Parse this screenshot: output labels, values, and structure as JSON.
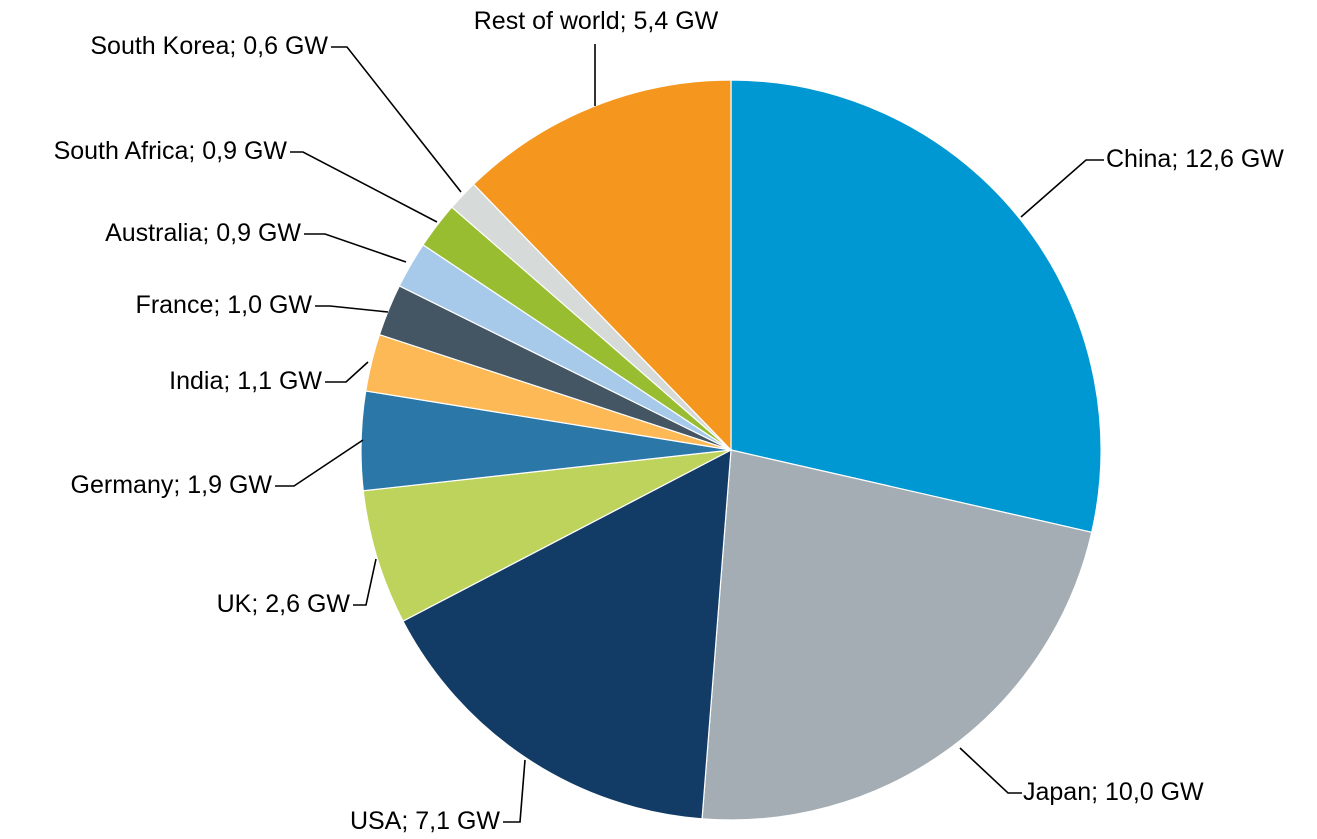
{
  "chart_data": {
    "type": "pie",
    "title": "",
    "unit": "GW",
    "slices": [
      {
        "name": "China",
        "value": 12.6,
        "label": "China; 12,6 GW",
        "color": "#0098d2"
      },
      {
        "name": "Japan",
        "value": 10.0,
        "label": "Japan; 10,0 GW",
        "color": "#a3adb3"
      },
      {
        "name": "USA",
        "value": 7.1,
        "label": "USA; 7,1 GW",
        "color": "#123c66"
      },
      {
        "name": "UK",
        "value": 2.6,
        "label": "UK; 2,6 GW",
        "color": "#bed35b"
      },
      {
        "name": "Germany",
        "value": 1.9,
        "label": "Germany; 1,9 GW",
        "color": "#2a77a8"
      },
      {
        "name": "India",
        "value": 1.1,
        "label": "India; 1,1 GW",
        "color": "#fcb955"
      },
      {
        "name": "France",
        "value": 1.0,
        "label": "France; 1,0 GW",
        "color": "#445563"
      },
      {
        "name": "Australia",
        "value": 0.9,
        "label": "Australia; 0,9 GW",
        "color": "#a7caeb"
      },
      {
        "name": "South Africa",
        "value": 0.9,
        "label": "South Africa; 0,9 GW",
        "color": "#98bd31"
      },
      {
        "name": "South Korea",
        "value": 0.6,
        "label": "South Korea; 0,6 GW",
        "color": "#d6dbd9"
      },
      {
        "name": "Rest of world",
        "value": 5.4,
        "label": "Rest of world; 5,4 GW",
        "color": "#f5961f"
      }
    ]
  }
}
